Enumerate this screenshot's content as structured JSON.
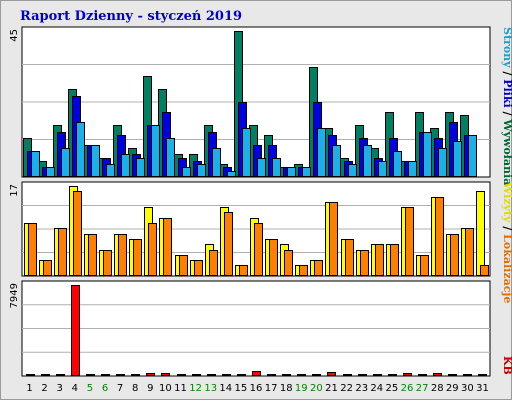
{
  "chart_data": {
    "type": "bar",
    "title": "Raport Dzienny -  styczeń 2019",
    "days": [
      "1",
      "2",
      "3",
      "4",
      "5",
      "6",
      "7",
      "8",
      "9",
      "10",
      "11",
      "12",
      "13",
      "14",
      "15",
      "16",
      "17",
      "18",
      "19",
      "20",
      "21",
      "22",
      "23",
      "24",
      "25",
      "26",
      "27",
      "28",
      "29",
      "30",
      "31"
    ],
    "weekend_days": [
      "5",
      "6",
      "12",
      "13",
      "19",
      "20",
      "26",
      "27"
    ],
    "panels": [
      {
        "name": "top",
        "ymax_label": "45",
        "ymax": 45,
        "side_labels": [
          {
            "text": "Strony",
            "color": "#1a9fcc"
          },
          {
            "text": " / ",
            "color": "#000000"
          },
          {
            "text": "Pliki",
            "color": "#0000cc"
          },
          {
            "text": " / ",
            "color": "#000000"
          },
          {
            "text": "Wywołania",
            "color": "#006633"
          }
        ],
        "series": [
          {
            "name": "Wywołania",
            "color": "#008060",
            "values": [
              12,
              5,
              16,
              27,
              10,
              6,
              16,
              9,
              31,
              27,
              7,
              7,
              16,
              4,
              45,
              16,
              13,
              3,
              4,
              34,
              15,
              6,
              16,
              9,
              20,
              5,
              20,
              15,
              20,
              19,
              0
            ]
          },
          {
            "name": "Pliki",
            "color": "#0000e0",
            "values": [
              8,
              3,
              14,
              25,
              10,
              6,
              13,
              7,
              16,
              20,
              6,
              5,
              14,
              3,
              23,
              10,
              10,
              3,
              3,
              23,
              13,
              5,
              12,
              6,
              12,
              5,
              14,
              12,
              17,
              13,
              0
            ]
          },
          {
            "name": "Strony",
            "color": "#1ab0e8",
            "values": [
              8,
              3,
              9,
              17,
              10,
              4,
              7,
              6,
              16,
              12,
              3,
              4,
              9,
              2,
              15,
              6,
              6,
              3,
              3,
              15,
              10,
              4,
              10,
              5,
              8,
              5,
              14,
              9,
              11,
              13,
              0
            ]
          }
        ]
      },
      {
        "name": "middle",
        "ymax_label": "17",
        "ymax": 17,
        "side_labels": [
          {
            "text": "Wizyty",
            "color": "#dddd00"
          },
          {
            "text": " / ",
            "color": "#000000"
          },
          {
            "text": "Lokalizacje",
            "color": "#e07000"
          }
        ],
        "series": [
          {
            "name": "Wizyty",
            "color": "#ffff00",
            "values": [
              10,
              3,
              9,
              17,
              8,
              5,
              8,
              7,
              13,
              11,
              4,
              3,
              6,
              13,
              2,
              11,
              7,
              6,
              2,
              3,
              14,
              7,
              5,
              6,
              6,
              13,
              4,
              15,
              8,
              9,
              16
            ]
          },
          {
            "name": "Lokalizacje",
            "color": "#ff8000",
            "values": [
              10,
              3,
              9,
              16,
              8,
              5,
              8,
              7,
              10,
              11,
              4,
              3,
              5,
              12,
              2,
              10,
              7,
              5,
              2,
              3,
              14,
              7,
              5,
              6,
              6,
              13,
              4,
              15,
              8,
              9,
              2
            ]
          }
        ]
      },
      {
        "name": "bottom",
        "ymax_label": "7949",
        "ymax": 7949,
        "side_labels": [
          {
            "text": "KB",
            "color": "#cc0000"
          }
        ],
        "series": [
          {
            "name": "KB",
            "color": "#ff0000",
            "values": [
              90,
              90,
              150,
              7949,
              90,
              90,
              140,
              110,
              240,
              240,
              110,
              110,
              110,
              140,
              110,
              400,
              140,
              110,
              90,
              90,
              330,
              180,
              110,
              180,
              180,
              300,
              110,
              240,
              180,
              180,
              180
            ]
          }
        ]
      }
    ]
  }
}
